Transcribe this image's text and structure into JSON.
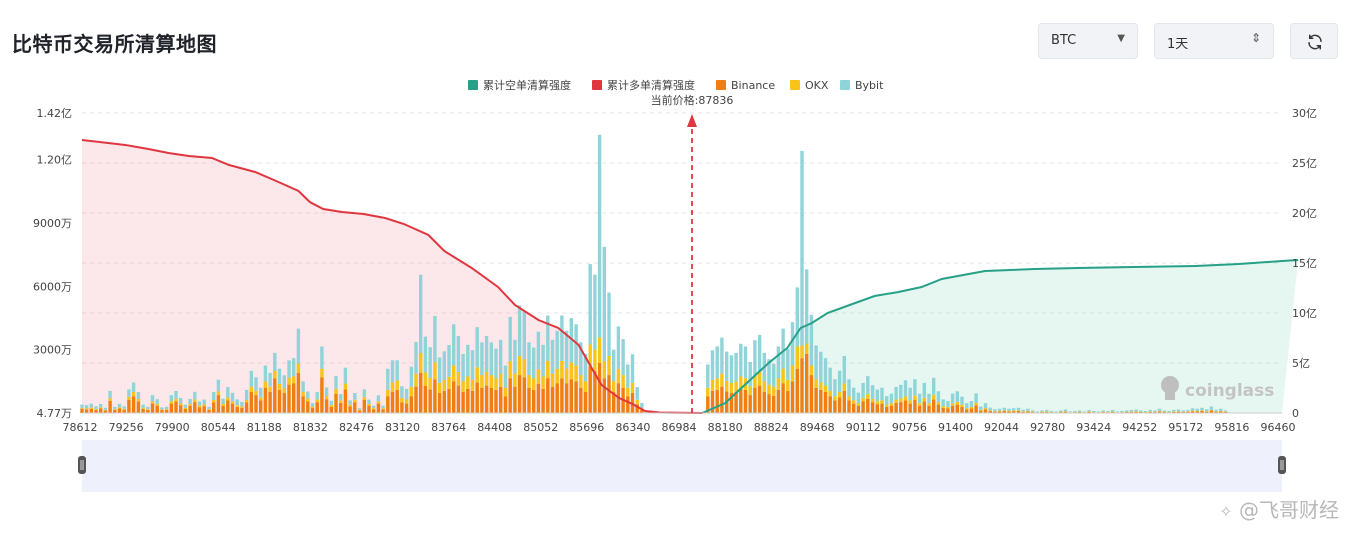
{
  "header": {
    "title": "比特币交易所清算地图",
    "coin_value": "BTC",
    "period_value": "1天"
  },
  "icons": {
    "coin_arrow": "caret-down-icon",
    "period_arrow": "updown-chevron-icon",
    "refresh": "refresh-icon"
  },
  "watermark": {
    "coinglass": "coinglass",
    "author": "@飞哥财经"
  },
  "colors": {
    "short_cum": "#26a187",
    "long_cum": "#e0363f",
    "binance": "#f07e12",
    "okx": "#f7c417",
    "bybit": "#8fd4d9"
  },
  "chart_data": {
    "type": "bar",
    "current_price_label": "当前价格:87836",
    "current_price": 87836,
    "legend": [
      {
        "name": "累计空单清算强度",
        "color": "#26a187"
      },
      {
        "name": "累计多单清算强度",
        "color": "#e0363f"
      },
      {
        "name": "Binance",
        "color": "#f07e12"
      },
      {
        "name": "OKX",
        "color": "#f7c417"
      },
      {
        "name": "Bybit",
        "color": "#8fd4d9"
      }
    ],
    "x_tick_labels": [
      "78612",
      "79256",
      "79900",
      "80544",
      "81188",
      "81832",
      "82476",
      "83120",
      "83764",
      "84408",
      "85052",
      "85696",
      "86340",
      "86984",
      "88180",
      "88824",
      "89468",
      "90112",
      "90756",
      "91400",
      "92044",
      "92780",
      "93424",
      "94252",
      "95172",
      "95816",
      "96460"
    ],
    "y_left_tick_labels": [
      "4.77万",
      "3000万",
      "6000万",
      "9000万",
      "1.20亿",
      "1.42亿"
    ],
    "y_left_tick_values": [
      47700,
      30000000,
      60000000,
      90000000,
      120000000,
      142000000
    ],
    "y_right_tick_labels": [
      "0",
      "5亿",
      "10亿",
      "15亿",
      "20亿",
      "25亿",
      "30亿"
    ],
    "y_right_tick_values": [
      0,
      500000000,
      1000000000,
      1500000000,
      2000000000,
      2500000000,
      3000000000
    ],
    "x_range": [
      78612,
      96460
    ],
    "y_left_range": [
      47700,
      142000000
    ],
    "y_right_range": [
      0,
      3000000000
    ],
    "long_cumulative": {
      "name": "累计多单清算强度",
      "x": [
        78612,
        79000,
        79256,
        79600,
        79900,
        80200,
        80544,
        80800,
        81188,
        81500,
        81832,
        82000,
        82200,
        82476,
        82800,
        83120,
        83400,
        83764,
        84000,
        84408,
        84800,
        85052,
        85400,
        85696,
        86000,
        86200,
        86340,
        86600,
        86800,
        86984,
        87200,
        87836
      ],
      "y": [
        2730000000,
        2700000000,
        2680000000,
        2640000000,
        2600000000,
        2570000000,
        2550000000,
        2480000000,
        2410000000,
        2320000000,
        2220000000,
        2110000000,
        2040000000,
        2010000000,
        1990000000,
        1950000000,
        1890000000,
        1780000000,
        1620000000,
        1450000000,
        1260000000,
        1080000000,
        930000000,
        850000000,
        680000000,
        440000000,
        280000000,
        150000000,
        90000000,
        20000000,
        5000000,
        0
      ]
    },
    "short_cumulative": {
      "name": "累计空单清算强度",
      "x": [
        87836,
        88180,
        88500,
        88824,
        89100,
        89300,
        89468,
        89700,
        90112,
        90400,
        90756,
        91100,
        91400,
        91800,
        92044,
        92780,
        93424,
        94252,
        95172,
        95816,
        96460,
        96700
      ],
      "y": [
        0,
        100000000,
        300000000,
        500000000,
        650000000,
        850000000,
        900000000,
        1000000000,
        1100000000,
        1170000000,
        1210000000,
        1260000000,
        1340000000,
        1390000000,
        1420000000,
        1440000000,
        1450000000,
        1460000000,
        1470000000,
        1490000000,
        1520000000,
        1530000000
      ]
    },
    "bars": {
      "x": [
        78612,
        78680,
        78750,
        78820,
        78890,
        78960,
        79030,
        79100,
        79170,
        79240,
        79310,
        79380,
        79450,
        79520,
        79590,
        79660,
        79730,
        79800,
        79870,
        79940,
        80010,
        80080,
        80150,
        80220,
        80290,
        80360,
        80430,
        80500,
        80570,
        80640,
        80710,
        80780,
        80850,
        80920,
        80990,
        81060,
        81130,
        81200,
        81270,
        81340,
        81410,
        81480,
        81550,
        81620,
        81690,
        81760,
        81830,
        81900,
        81970,
        82040,
        82110,
        82180,
        82250,
        82320,
        82390,
        82460,
        82530,
        82600,
        82670,
        82740,
        82810,
        82880,
        82950,
        83020,
        83090,
        83160,
        83230,
        83300,
        83370,
        83440,
        83510,
        83580,
        83650,
        83720,
        83790,
        83860,
        83930,
        84000,
        84070,
        84140,
        84210,
        84280,
        84350,
        84420,
        84490,
        84560,
        84630,
        84700,
        84770,
        84840,
        84910,
        84980,
        85050,
        85120,
        85190,
        85260,
        85330,
        85400,
        85470,
        85540,
        85610,
        85680,
        85750,
        85820,
        85890,
        85960,
        86030,
        86100,
        86170,
        86240,
        86310,
        86380,
        86450,
        86520,
        86590,
        86660,
        86730,
        86800,
        86870,
        86940,
        87010,
        87080,
        87150,
        87220,
        87290,
        87360,
        87430,
        87500,
        87570,
        87640,
        87710,
        87780,
        87850,
        87920,
        87990,
        88060,
        88130,
        88200,
        88270,
        88340,
        88410,
        88480,
        88550,
        88620,
        88690,
        88760,
        88830,
        88900,
        88970,
        89040,
        89110,
        89180,
        89250,
        89320,
        89390,
        89460,
        89530,
        89600,
        89670,
        89740,
        89810,
        89880,
        89950,
        90020,
        90090,
        90160,
        90230,
        90300,
        90370,
        90440,
        90510,
        90580,
        90650,
        90720,
        90790,
        90860,
        90930,
        91000,
        91070,
        91140,
        91210,
        91280,
        91350,
        91420,
        91490,
        91560,
        91630,
        91700,
        91770,
        91840,
        91910,
        91980,
        92050,
        92120,
        92190,
        92260,
        92330,
        92400,
        92470,
        92540,
        92610,
        92680,
        92750,
        92820,
        92890,
        92960,
        93030,
        93100,
        93170,
        93240,
        93310,
        93380,
        93450,
        93520,
        93590,
        93660,
        93730,
        93800,
        93870,
        93940,
        94010,
        94080,
        94150,
        94220,
        94290,
        94360,
        94430,
        94500,
        94570,
        94640,
        94710,
        94780,
        94850,
        94920,
        94990,
        95060,
        95130,
        95200,
        95270,
        95340,
        95410,
        95480,
        95550,
        95620,
        95690,
        95760,
        95830,
        95900,
        95970,
        96040,
        96110,
        96180,
        96250,
        96320,
        96390,
        96460
      ],
      "binance": [
        2,
        1.8,
        2.1,
        1.5,
        2.2,
        1.2,
        5.8,
        1.5,
        2.2,
        1.6,
        6.2,
        8,
        5.5,
        2,
        1.5,
        4.5,
        3.5,
        1.4,
        1.5,
        4.5,
        5.5,
        3.7,
        2,
        3.5,
        5.2,
        2.8,
        3.3,
        1.5,
        5,
        8.5,
        3.5,
        6,
        4.5,
        3,
        2.5,
        5,
        10,
        8.5,
        6,
        12,
        10,
        16.5,
        11,
        9.5,
        13.5,
        14,
        19,
        8,
        5.5,
        2.5,
        5.2,
        17,
        6.5,
        3,
        9.2,
        4.8,
        11.2,
        3.2,
        5,
        1.2,
        6.2,
        3.5,
        1.8,
        4.5,
        1.8,
        8,
        10,
        11,
        5,
        4.5,
        8,
        12.5,
        19,
        12.8,
        11.2,
        16,
        9.5,
        10.5,
        11.5,
        15,
        13,
        10,
        11.5,
        10.5,
        14.5,
        12,
        13,
        12,
        11,
        12.5,
        8,
        16.5,
        12.5,
        18,
        17,
        12,
        11,
        13.8,
        11.5,
        16.5,
        12.5,
        14,
        16.5,
        14,
        16,
        15,
        12,
        10,
        22,
        20,
        23.8,
        16.5,
        18,
        10,
        14,
        12,
        8,
        9.5,
        4.2,
        1.5,
        0,
        0,
        0,
        0,
        0,
        0,
        0,
        0,
        0,
        0,
        0,
        0,
        0,
        8,
        10.5,
        11,
        12.5,
        10.2,
        9.5,
        10,
        11.5,
        11,
        8.5,
        12,
        13,
        10,
        9,
        8.2,
        11,
        14,
        10.5,
        15,
        21,
        26,
        28,
        18,
        12,
        11,
        10,
        8,
        6,
        7.5,
        10.5,
        6,
        4.5,
        3.5,
        5.5,
        6.8,
        5,
        4.2,
        4.5,
        3,
        3.5,
        4.8,
        5.2,
        6,
        4.5,
        6.2,
        3.5,
        5.5,
        3.5,
        6.5,
        4,
        2.5,
        2.2,
        3.5,
        4,
        3,
        1.8,
        2.2,
        3.6,
        1.2,
        1.8,
        1,
        0.7,
        0.8,
        1,
        0.8,
        0.9,
        1,
        0.6,
        0.8,
        0.5,
        0.3,
        0.5,
        0.6,
        0.4,
        0.3,
        0.5,
        0.7,
        0.3,
        0.4,
        0.5,
        0.3,
        0.6,
        0.4,
        0.3,
        0.5,
        0.4,
        0.6,
        0.3,
        0.4,
        0.5,
        0.6,
        0.7,
        0.5,
        0.4,
        0.6,
        0.5,
        0.8,
        0.5,
        0.4,
        0.6,
        0.7,
        0.5,
        0.6,
        0.9,
        0.8,
        1,
        0.7,
        1.2,
        0.6,
        0.8,
        0.5
      ],
      "okx": [
        0.5,
        0.5,
        0.6,
        0.4,
        0.5,
        0.3,
        1.2,
        0.4,
        0.5,
        0.4,
        1.5,
        2,
        1.2,
        0.5,
        0.4,
        1,
        0.8,
        0.3,
        0.4,
        1,
        1.2,
        0.9,
        0.5,
        0.8,
        1.3,
        0.7,
        0.8,
        0.4,
        1.2,
        1.8,
        0.8,
        1.4,
        1.1,
        0.7,
        0.6,
        1.2,
        2.5,
        2.1,
        1.5,
        3,
        2.5,
        3.5,
        2.8,
        2.4,
        3.2,
        3.4,
        4.5,
        2,
        1.4,
        0.6,
        1.3,
        4,
        1.6,
        0.8,
        2.3,
        1.2,
        2.8,
        0.8,
        1.3,
        0.3,
        1.5,
        0.9,
        0.5,
        1.1,
        0.5,
        3,
        4.5,
        4.5,
        2.2,
        2,
        4.5,
        6.2,
        9.5,
        6.4,
        5.5,
        8,
        4.8,
        5.2,
        5.7,
        7.5,
        6.5,
        5,
        5.8,
        5.3,
        7.2,
        6,
        6.5,
        6,
        5.5,
        6.2,
        4,
        8,
        6.2,
        9,
        8.5,
        6,
        5.5,
        6.9,
        5.8,
        8.2,
        6.2,
        7,
        8.2,
        7,
        8,
        7.5,
        6,
        5,
        10.5,
        10,
        11.9,
        8.2,
        9,
        5,
        7,
        6,
        4,
        4.8,
        2.1,
        0.8,
        0,
        0,
        0,
        0,
        0,
        0,
        0,
        0,
        0,
        0,
        0,
        0,
        0,
        4,
        5.2,
        5.5,
        6.2,
        5.1,
        4.8,
        5,
        5.8,
        5.5,
        4.2,
        6,
        6.5,
        5,
        4.5,
        4.1,
        5.5,
        7,
        5.2,
        7.5,
        10.5,
        6,
        5,
        4.5,
        4,
        3.5,
        3,
        2.5,
        2,
        2.5,
        3.5,
        2,
        1.5,
        1.2,
        1.8,
        2.2,
        1.7,
        1.4,
        1.5,
        1,
        1.2,
        1.6,
        1.7,
        2,
        1.5,
        2.1,
        1.2,
        1.8,
        1.2,
        2.2,
        1.3,
        0.8,
        0.7,
        1.2,
        1.3,
        1,
        0.6,
        0.7,
        1.2,
        0.4,
        0.6,
        0.3,
        0.2,
        0.3,
        0.3,
        0.3,
        0.3,
        0.3,
        0.2,
        0.3,
        0.2,
        0.1,
        0.2,
        0.2,
        0.1,
        0.1,
        0.2,
        0.2,
        0.1,
        0.1,
        0.2,
        0.1,
        0.2,
        0.1,
        0.1,
        0.2,
        0.1,
        0.2,
        0.1,
        0.1,
        0.2,
        0.2,
        0.2,
        0.2,
        0.1,
        0.2,
        0.2,
        0.3,
        0.2,
        0.1,
        0.2,
        0.2,
        0.2,
        0.2,
        0.3,
        0.3,
        0.3,
        0.2,
        0.4,
        0.2,
        0.3,
        0.2
      ],
      "bybit": [
        1.5,
        1.5,
        1.8,
        1.3,
        1.6,
        1,
        3.5,
        1.1,
        1.6,
        1.2,
        3.5,
        4.5,
        3.3,
        1.5,
        1.1,
        3,
        2.3,
        1,
        1.1,
        3,
        3.8,
        2.6,
        1.5,
        2.4,
        3.6,
        2,
        2.3,
        1.1,
        3.8,
        5.5,
        2.5,
        5,
        4,
        2.8,
        2.2,
        4.8,
        7.5,
        6.4,
        4.5,
        7.5,
        6.5,
        8.5,
        7.2,
        6,
        8.3,
        8.6,
        16.5,
        5,
        3.3,
        1.6,
        3.5,
        10.5,
        4,
        2,
        6,
        3,
        7.5,
        2,
        3.2,
        0.8,
        3.5,
        2,
        1.2,
        2.8,
        1.2,
        10,
        10.5,
        9.5,
        5.5,
        5,
        9.5,
        15,
        37,
        17,
        14.5,
        22,
        12,
        13.5,
        15,
        19.5,
        17,
        13,
        15,
        14,
        19,
        15.5,
        17,
        15.5,
        14,
        16,
        10.5,
        21,
        16,
        24,
        22.5,
        15.5,
        14.5,
        17.8,
        15,
        21.5,
        16,
        18,
        21.5,
        18,
        21,
        19.5,
        15.5,
        13,
        38,
        35.5,
        96,
        54,
        30,
        15,
        20,
        17,
        11,
        13.5,
        6,
        2.5,
        0,
        0,
        0,
        0,
        0,
        0,
        0,
        0,
        0,
        0,
        0,
        0,
        0,
        11,
        14,
        15,
        17,
        13.8,
        13,
        13.5,
        15.5,
        15,
        11.5,
        16.5,
        17.5,
        13.5,
        12,
        11,
        15,
        19,
        14.5,
        20.5,
        28,
        92,
        35,
        24,
        16,
        14.5,
        13,
        11,
        8,
        10,
        13,
        8,
        6,
        5,
        7,
        8.5,
        6.5,
        5.5,
        6,
        4,
        4.5,
        6,
        6.5,
        7.5,
        6,
        7.8,
        4.5,
        7,
        4.5,
        8,
        5,
        3.2,
        2.8,
        4.5,
        5,
        3.8,
        2.3,
        2.8,
        4.5,
        1.5,
        2.3,
        1.3,
        0.9,
        1,
        1.2,
        1,
        1.1,
        1.2,
        0.8,
        1,
        0.6,
        0.4,
        0.6,
        0.7,
        0.5,
        0.4,
        0.6,
        0.8,
        0.4,
        0.5,
        0.6,
        0.4,
        0.7,
        0.5,
        0.4,
        0.6,
        0.5,
        0.7,
        0.4,
        0.5,
        0.6,
        0.7,
        0.8,
        0.6,
        0.5,
        0.7,
        0.6,
        1,
        0.6,
        0.5,
        0.7,
        0.8,
        0.6,
        0.7,
        1.1,
        1,
        1.2,
        0.9,
        1.5,
        0.8,
        1,
        0.6
      ],
      "unit_multiplier": 1000000
    }
  }
}
